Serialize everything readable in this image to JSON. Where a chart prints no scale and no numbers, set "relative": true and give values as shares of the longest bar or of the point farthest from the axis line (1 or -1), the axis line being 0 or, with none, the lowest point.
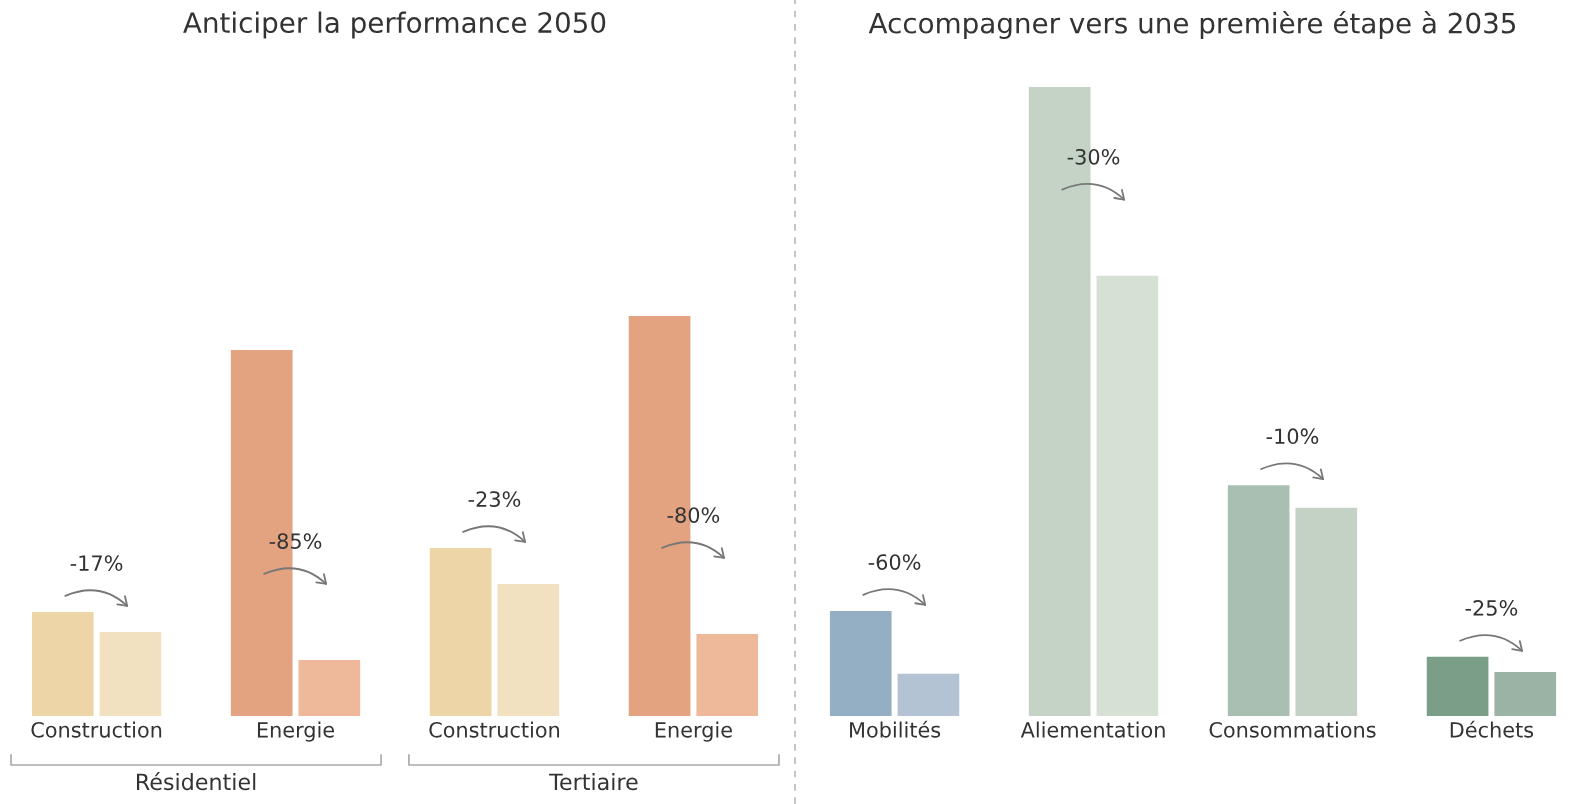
{
  "chart_data": [
    {
      "type": "bar",
      "title": "Anticiper la performance 2050",
      "relative": true,
      "tick_labels": "x",
      "grid": false,
      "legend": false,
      "categories": [
        "Construction",
        "Energie",
        "Construction",
        "Energie"
      ],
      "series": [
        {
          "colors": [
            "#edd5a8",
            "#e4a380",
            "#edd5a8",
            "#e4a380"
          ],
          "values": [
            0.26,
            0.915,
            0.42,
            1
          ]
        },
        {
          "colors": [
            "#f1e1c0",
            "#eeb99b",
            "#f1e1c0",
            "#eeb99b"
          ],
          "values": [
            0.21,
            0.14,
            0.33,
            0.205
          ]
        }
      ],
      "annotations": [
        "-17%",
        "-85%",
        "-23%",
        "-80%",
        "Résidentiel",
        "Tertiaire"
      ]
    },
    {
      "type": "bar",
      "title": "Accompagner vers une première étape à 2035",
      "relative": true,
      "tick_labels": "x",
      "grid": false,
      "legend": false,
      "categories": [
        "Mobilités",
        "Aliementation",
        "Consommations",
        "Déchets"
      ],
      "series": [
        {
          "colors": [
            "#94afc4",
            "#c5d3c6",
            "#a9bfb2",
            "#7a9e87"
          ],
          "values": [
            0.167,
            1,
            0.367,
            0.094
          ]
        },
        {
          "colors": [
            "#b3c3d4",
            "#d6e0d5",
            "#c4d2c6",
            "#9bb3a5"
          ],
          "values": [
            0.067,
            0.7,
            0.331,
            0.07
          ]
        }
      ],
      "annotations": [
        "-60%",
        "-30%",
        "-10%",
        "-25%"
      ]
    }
  ]
}
